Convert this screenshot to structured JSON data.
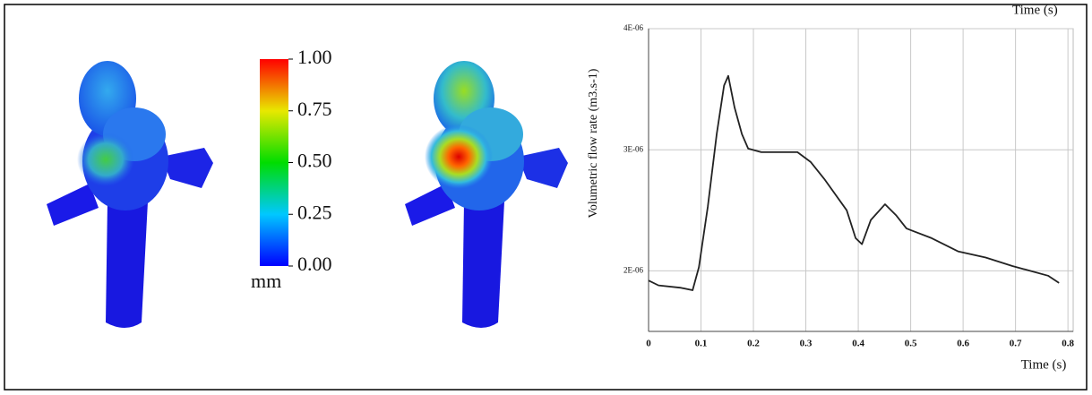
{
  "colorbar": {
    "lim": [
      0,
      1
    ],
    "ticks": [
      {
        "value": 0,
        "label": "0.00"
      },
      {
        "value": 0.25,
        "label": "0.25"
      },
      {
        "value": 0.5,
        "label": "0.50"
      },
      {
        "value": 0.75,
        "label": "0.75"
      },
      {
        "value": 1,
        "label": "1.00"
      }
    ],
    "unit": "mm"
  },
  "chart_data": {
    "type": "line",
    "y_label": "Volumetric flow rate  (m3.s-1)",
    "x_label": "Time (s)",
    "top_label": "Time (s)",
    "color": "#222222",
    "grid": true,
    "x": [
      0,
      0.019,
      0.062,
      0.084,
      0.096,
      0.113,
      0.13,
      0.144,
      0.152,
      0.164,
      0.178,
      0.19,
      0.215,
      0.284,
      0.309,
      0.335,
      0.378,
      0.395,
      0.407,
      0.424,
      0.451,
      0.472,
      0.492,
      0.54,
      0.591,
      0.643,
      0.694,
      0.728,
      0.762,
      0.783
    ],
    "values": [
      1.92e-06,
      1.88e-06,
      1.86e-06,
      1.84e-06,
      2.03e-06,
      2.53e-06,
      3.13e-06,
      3.53e-06,
      3.61e-06,
      3.35e-06,
      3.13e-06,
      3.01e-06,
      2.98e-06,
      2.98e-06,
      2.9e-06,
      2.76e-06,
      2.5e-06,
      2.27e-06,
      2.22e-06,
      2.42e-06,
      2.55e-06,
      2.46e-06,
      2.35e-06,
      2.27e-06,
      2.16e-06,
      2.11e-06,
      2.04e-06,
      2e-06,
      1.96e-06,
      1.9e-06
    ],
    "xlim": [
      0,
      0.81
    ],
    "xticks": [
      0,
      0.1,
      0.2,
      0.3,
      0.4,
      0.5,
      0.6,
      0.7,
      0.8
    ],
    "ylim": [
      1.5e-06,
      4e-06
    ],
    "yticks": [
      {
        "value": 2e-06,
        "label": "2E-06"
      },
      {
        "value": 3e-06,
        "label": "3E-06"
      },
      {
        "value": 4e-06,
        "label": "4E-06"
      }
    ]
  }
}
